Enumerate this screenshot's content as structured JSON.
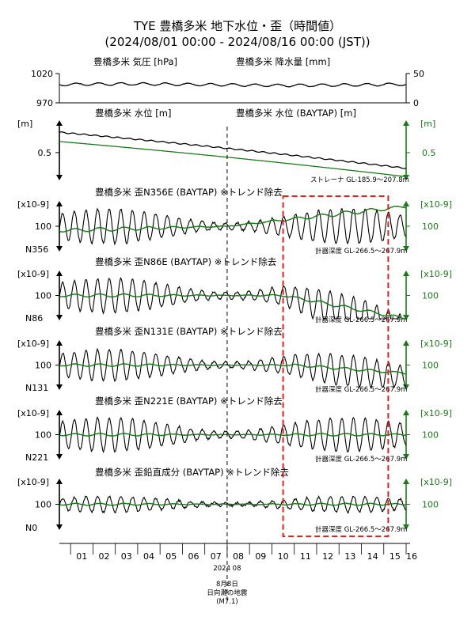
{
  "colors": {
    "black": "#000000",
    "green": "#1a7a1a",
    "event_box": "#e32020",
    "event_line": "#000000"
  },
  "header": {
    "title": "TYE 豊橋多米 地下水位・歪（時間値）",
    "subtitle": "(2024/08/01 00:00 - 2024/08/16 00:00 (JST))"
  },
  "chart_data": {
    "type": "line",
    "x_range_days": [
      0.5,
      16
    ],
    "x_ticks": [
      "01",
      "02",
      "03",
      "04",
      "05",
      "06",
      "07",
      "08",
      "09",
      "10",
      "11",
      "12",
      "13",
      "14",
      "15",
      "16"
    ],
    "x_axis_label": "2024 08",
    "event": {
      "day": 8,
      "label_date": "8月8日",
      "label_name": "日向灘の地震",
      "label_mag": "(M7.1)"
    },
    "anomaly_box_days": [
      10.5,
      15.2
    ],
    "panels": [
      {
        "id": "pressure",
        "left_title": "豊橋多米 気圧 [hPa]",
        "right_title": "豊橋多米 降水量 [mm]",
        "left_ticks": [
          "1020",
          "970"
        ],
        "left_tick_values": [
          1020,
          970
        ],
        "right_ticks": [
          "50",
          "0"
        ],
        "right_tick_values": [
          50,
          0
        ],
        "ylim": [
          970,
          1020
        ],
        "series": [
          {
            "color": "black",
            "base": 1001,
            "slope": 0,
            "amp": 2.2,
            "period": 1,
            "noise": 0.8
          }
        ]
      },
      {
        "id": "water",
        "left_title": "豊橋多米 水位 [m]",
        "right_title": "豊橋多米 水位 (BAYTAP) [m]",
        "unit_left": "[m]",
        "unit_right": "[m]",
        "left_tick": "0.5",
        "right_tick": "0.5",
        "note": "ストレーナ GL-185.9～207.8m",
        "series": [
          {
            "color": "black",
            "start": 0.72,
            "end": 0.33,
            "amp": 0.006,
            "period": 0.5
          },
          {
            "color": "green",
            "start": 0.62,
            "end": 0.24,
            "amp": 0,
            "period": 1
          }
        ]
      },
      {
        "id": "n356",
        "left_title": "豊橋多米 歪N356E (BAYTAP) ※トレンド除去",
        "unit_left": "[x10-9]",
        "unit_right": "[x10-9]",
        "left_tick": "100",
        "right_tick": "100",
        "corner_label": "N356",
        "note": "計器深度 GL-266.5～267.9m",
        "series": [
          {
            "color": "black",
            "base": 100,
            "amp": 55,
            "period": 0.52,
            "drift_after": 0.0,
            "drift_rate": 0
          },
          {
            "color": "green",
            "base": 100,
            "amp": 6,
            "period": 1.1,
            "drift_after": 8,
            "drift_rate": 8
          }
        ]
      },
      {
        "id": "n86",
        "left_title": "豊橋多米 歪N86E (BAYTAP) ※トレンド除去",
        "unit_left": "[x10-9]",
        "unit_right": "[x10-9]",
        "left_tick": "100",
        "right_tick": "100",
        "corner_label": "N86",
        "note": "計器深度 GL-266.5～267.9m",
        "series": [
          {
            "color": "black",
            "base": 100,
            "amp": 55,
            "period": 0.52,
            "drift_after": 10.5,
            "drift_rate": -25
          },
          {
            "color": "green",
            "base": 100,
            "amp": 5,
            "period": 1.1,
            "drift_after": 10.5,
            "drift_rate": -18
          }
        ]
      },
      {
        "id": "n131",
        "left_title": "豊橋多米 歪N131E (BAYTAP) ※トレンド除去",
        "unit_left": "[x10-9]",
        "unit_right": "[x10-9]",
        "left_tick": "100",
        "right_tick": "100",
        "corner_label": "N131",
        "note": "計器深度 GL-266.5～267.9m",
        "series": [
          {
            "color": "black",
            "base": 100,
            "amp": 50,
            "period": 0.52,
            "drift_after": 11,
            "drift_rate": -10
          },
          {
            "color": "green",
            "base": 100,
            "amp": 4,
            "period": 1.1,
            "drift_after": 11,
            "drift_rate": -7
          }
        ]
      },
      {
        "id": "n221",
        "left_title": "豊橋多米 歪N221E (BAYTAP) ※トレンド除去",
        "unit_left": "[x10-9]",
        "unit_right": "[x10-9]",
        "left_tick": "100",
        "right_tick": "100",
        "corner_label": "N221",
        "note": "計器深度 GL-266.5～267.9m",
        "series": [
          {
            "color": "black",
            "base": 100,
            "amp": 55,
            "period": 0.52,
            "drift_after": 0,
            "drift_rate": 0
          },
          {
            "color": "green",
            "base": 100,
            "amp": 4,
            "period": 1.1,
            "drift_after": 0,
            "drift_rate": 0
          }
        ]
      },
      {
        "id": "vertical",
        "left_title": "豊橋多米 歪鉛直成分 (BAYTAP) ※トレンド除去",
        "unit_left": "[x10-9]",
        "unit_right": "[x10-9]",
        "left_tick": "100",
        "right_tick": "100",
        "corner_label": "N0",
        "note": "計器深度 GL-266.5～267.9m",
        "series": [
          {
            "color": "black",
            "base": 100,
            "amp": 25,
            "period": 0.52,
            "drift_after": 0,
            "drift_rate": 0
          },
          {
            "color": "green",
            "base": 100,
            "amp": 3,
            "period": 1.1,
            "drift_after": 0,
            "drift_rate": 0
          }
        ]
      }
    ]
  }
}
